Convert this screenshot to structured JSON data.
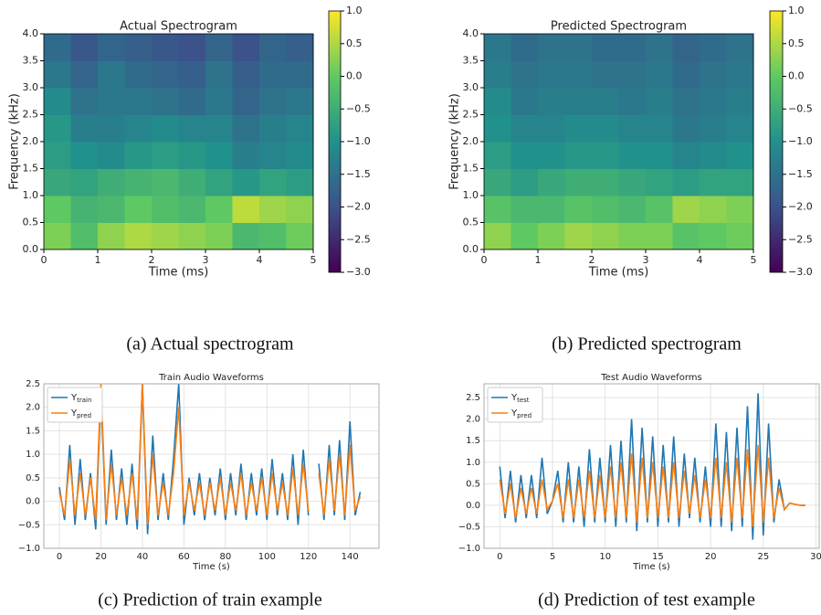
{
  "chart_data": [
    {
      "type": "heatmap",
      "title": "Actual Spectrogram",
      "xlabel": "Time (ms)",
      "ylabel": "Frequency (kHz)",
      "caption": "(a) Actual spectrogram",
      "xlim": [
        0,
        5
      ],
      "xticks": [
        0,
        1,
        2,
        3,
        4,
        5
      ],
      "ylim": [
        0,
        4
      ],
      "yticks": [
        {
          "value": 0,
          "label": "0.0"
        },
        {
          "value": 0.5,
          "label": "0.5"
        },
        {
          "value": 1,
          "label": "1.0"
        },
        {
          "value": 1.5,
          "label": "1.5"
        },
        {
          "value": 2,
          "label": "2.0"
        },
        {
          "value": 2.5,
          "label": "2.5"
        },
        {
          "value": 3,
          "label": "3.0"
        },
        {
          "value": 3.5,
          "label": "3.5"
        },
        {
          "value": 4,
          "label": "4.0"
        }
      ],
      "xbins": [
        0,
        0.5,
        1,
        1.5,
        2,
        2.5,
        3,
        3.5,
        4,
        4.5,
        5
      ],
      "ybins": [
        0,
        0.5,
        1,
        1.5,
        2,
        2.5,
        3,
        3.5,
        4
      ],
      "z": [
        [
          0.2,
          -0.2,
          0.3,
          0.5,
          0.4,
          0.3,
          0.2,
          -0.3,
          -0.2,
          0.1
        ],
        [
          0.0,
          -0.4,
          -0.3,
          0.0,
          -0.2,
          -0.3,
          0.0,
          0.6,
          0.4,
          0.3
        ],
        [
          -0.6,
          -0.7,
          -0.5,
          -0.4,
          -0.3,
          -0.5,
          -0.7,
          -0.9,
          -0.7,
          -0.8
        ],
        [
          -0.8,
          -1.0,
          -1.1,
          -0.9,
          -0.8,
          -0.9,
          -1.0,
          -1.3,
          -1.2,
          -1.1
        ],
        [
          -0.9,
          -1.3,
          -1.3,
          -1.2,
          -1.1,
          -1.2,
          -1.2,
          -1.5,
          -1.3,
          -1.2
        ],
        [
          -1.1,
          -1.5,
          -1.4,
          -1.4,
          -1.5,
          -1.6,
          -1.4,
          -1.7,
          -1.5,
          -1.4
        ],
        [
          -1.4,
          -1.7,
          -1.4,
          -1.6,
          -1.7,
          -1.8,
          -1.5,
          -1.8,
          -1.6,
          -1.6
        ],
        [
          -1.6,
          -1.9,
          -1.7,
          -1.8,
          -1.9,
          -2.0,
          -1.7,
          -2.0,
          -1.7,
          -1.8
        ]
      ],
      "colorbar": {
        "lim": [
          -3,
          1
        ],
        "ticks": [
          {
            "value": 1,
            "label": "1.0"
          },
          {
            "value": 0.5,
            "label": "0.5"
          },
          {
            "value": 0,
            "label": "0.0"
          },
          {
            "value": -0.5,
            "label": "−0.5"
          },
          {
            "value": -1,
            "label": "−1.0"
          },
          {
            "value": -1.5,
            "label": "−1.5"
          },
          {
            "value": -2,
            "label": "−2.0"
          },
          {
            "value": -2.5,
            "label": "−2.5"
          },
          {
            "value": -3,
            "label": "−3.0"
          }
        ]
      }
    },
    {
      "type": "heatmap",
      "title": "Predicted Spectrogram",
      "xlabel": "Time (ms)",
      "ylabel": "Frequency (kHz)",
      "caption": "(b) Predicted spectrogram",
      "xlim": [
        0,
        5
      ],
      "xticks": [
        0,
        1,
        2,
        3,
        4,
        5
      ],
      "ylim": [
        0,
        4
      ],
      "yticks": [
        {
          "value": 0,
          "label": "0.0"
        },
        {
          "value": 0.5,
          "label": "0.5"
        },
        {
          "value": 1,
          "label": "1.0"
        },
        {
          "value": 1.5,
          "label": "1.5"
        },
        {
          "value": 2,
          "label": "2.0"
        },
        {
          "value": 2.5,
          "label": "2.5"
        },
        {
          "value": 3,
          "label": "3.0"
        },
        {
          "value": 3.5,
          "label": "3.5"
        },
        {
          "value": 4,
          "label": "4.0"
        }
      ],
      "xbins": [
        0,
        0.5,
        1,
        1.5,
        2,
        2.5,
        3,
        3.5,
        4,
        4.5,
        5
      ],
      "ybins": [
        0,
        0.5,
        1,
        1.5,
        2,
        2.5,
        3,
        3.5,
        4
      ],
      "z": [
        [
          0.3,
          0.0,
          0.2,
          0.4,
          0.3,
          0.2,
          0.2,
          -0.1,
          0.0,
          0.1
        ],
        [
          -0.1,
          -0.3,
          -0.3,
          -0.1,
          -0.2,
          -0.3,
          -0.1,
          0.4,
          0.3,
          0.2
        ],
        [
          -0.6,
          -0.8,
          -0.6,
          -0.5,
          -0.5,
          -0.6,
          -0.7,
          -0.8,
          -0.7,
          -0.7
        ],
        [
          -0.8,
          -1.0,
          -1.0,
          -0.9,
          -0.9,
          -1.0,
          -1.0,
          -1.2,
          -1.1,
          -1.0
        ],
        [
          -1.0,
          -1.2,
          -1.2,
          -1.1,
          -1.1,
          -1.2,
          -1.2,
          -1.4,
          -1.3,
          -1.2
        ],
        [
          -1.1,
          -1.4,
          -1.3,
          -1.3,
          -1.3,
          -1.4,
          -1.3,
          -1.5,
          -1.4,
          -1.3
        ],
        [
          -1.3,
          -1.5,
          -1.4,
          -1.4,
          -1.5,
          -1.5,
          -1.4,
          -1.6,
          -1.5,
          -1.4
        ],
        [
          -1.4,
          -1.6,
          -1.5,
          -1.5,
          -1.6,
          -1.6,
          -1.5,
          -1.7,
          -1.6,
          -1.5
        ]
      ],
      "colorbar": {
        "lim": [
          -3,
          1
        ],
        "ticks": [
          {
            "value": 1,
            "label": "1.0"
          },
          {
            "value": 0.5,
            "label": "0.5"
          },
          {
            "value": 0,
            "label": "0.0"
          },
          {
            "value": -0.5,
            "label": "−0.5"
          },
          {
            "value": -1,
            "label": "−1.0"
          },
          {
            "value": -1.5,
            "label": "−1.5"
          },
          {
            "value": -2,
            "label": "−2.0"
          },
          {
            "value": -2.5,
            "label": "−2.5"
          },
          {
            "value": -3,
            "label": "−3.0"
          }
        ]
      }
    },
    {
      "type": "line",
      "title": "Train Audio Waveforms",
      "xlabel": "Time (s)",
      "caption": "(c) Prediction of train example",
      "grid": true,
      "legend": "upper left",
      "xlim": [
        -7.5,
        154
      ],
      "xticks": [
        0,
        20,
        40,
        60,
        80,
        100,
        120,
        140
      ],
      "ylim": [
        -1,
        2.5
      ],
      "yticks": [
        {
          "value": -1,
          "label": "−1.0"
        },
        {
          "value": -0.5,
          "label": "−0.5"
        },
        {
          "value": 0,
          "label": "0.0"
        },
        {
          "value": 0.5,
          "label": "0.5"
        },
        {
          "value": 1,
          "label": "1.0"
        },
        {
          "value": 1.5,
          "label": "1.5"
        },
        {
          "value": 2,
          "label": "2.0"
        },
        {
          "value": 2.5,
          "label": "2.5"
        }
      ],
      "x": [
        0,
        2.5,
        5,
        7.5,
        10,
        12.5,
        15,
        17.5,
        20,
        22.5,
        25,
        27.5,
        30,
        32.5,
        35,
        37.5,
        40,
        42.5,
        45,
        47.5,
        50,
        52.5,
        55,
        57.5,
        60,
        62.5,
        65,
        67.5,
        70,
        72.5,
        75,
        77.5,
        80,
        82.5,
        85,
        87.5,
        90,
        92.5,
        95,
        97.5,
        100,
        102.5,
        105,
        107.5,
        110,
        112.5,
        115,
        117.5,
        120,
        122.5,
        125,
        127.5,
        130,
        132.5,
        135,
        137.5,
        140,
        142.5,
        145
      ],
      "series": [
        {
          "name": "Ytrain",
          "color": "#1f77b4",
          "values": [
            0.3,
            -0.4,
            1.2,
            -0.5,
            0.9,
            -0.4,
            0.6,
            -0.6,
            2.3,
            -0.5,
            1.1,
            -0.4,
            0.7,
            -0.5,
            0.8,
            -0.6,
            2.5,
            -0.7,
            1.4,
            -0.4,
            0.6,
            -0.4,
            0.9,
            2.5,
            -0.5,
            0.5,
            -0.3,
            0.6,
            -0.4,
            0.5,
            -0.3,
            0.7,
            -0.4,
            0.6,
            -0.3,
            0.8,
            -0.4,
            0.6,
            -0.3,
            0.7,
            -0.4,
            0.9,
            -0.3,
            0.6,
            -0.4,
            1.0,
            -0.5,
            1.1,
            -0.3,
            null,
            0.8,
            -0.4,
            1.2,
            -0.3,
            1.3,
            -0.4,
            1.7,
            -0.3,
            0.2
          ]
        },
        {
          "name": "Ypred",
          "color": "#ff7f0e",
          "values": [
            0.2,
            -0.3,
            0.9,
            -0.3,
            0.6,
            -0.3,
            0.5,
            -0.4,
            2.5,
            -0.4,
            0.8,
            -0.3,
            0.5,
            -0.3,
            0.6,
            -0.4,
            2.5,
            -0.5,
            1.0,
            -0.3,
            0.4,
            -0.3,
            0.6,
            2.0,
            -0.3,
            0.4,
            -0.2,
            0.4,
            -0.3,
            0.4,
            -0.2,
            0.5,
            -0.3,
            0.4,
            -0.2,
            0.6,
            -0.3,
            0.4,
            -0.2,
            0.5,
            -0.3,
            0.6,
            -0.2,
            0.4,
            -0.3,
            0.7,
            -0.3,
            0.8,
            -0.2,
            null,
            0.6,
            -0.3,
            0.9,
            -0.2,
            1.0,
            -0.3,
            1.2,
            -0.2,
            0.1
          ]
        }
      ]
    },
    {
      "type": "line",
      "title": "Test Audio Waveforms",
      "xlabel": "Time (s)",
      "caption": "(d) Prediction of test example",
      "grid": true,
      "legend": "upper left",
      "xlim": [
        -1.5,
        30.3
      ],
      "xticks": [
        0,
        5,
        10,
        15,
        20,
        25,
        30
      ],
      "ylim": [
        -1,
        2.82
      ],
      "yticks": [
        {
          "value": -1,
          "label": "−1.0"
        },
        {
          "value": -0.5,
          "label": "−0.5"
        },
        {
          "value": 0,
          "label": "0.0"
        },
        {
          "value": 0.5,
          "label": "0.5"
        },
        {
          "value": 1,
          "label": "1.0"
        },
        {
          "value": 1.5,
          "label": "1.5"
        },
        {
          "value": 2,
          "label": "2.0"
        },
        {
          "value": 2.5,
          "label": "2.5"
        }
      ],
      "x": [
        0,
        0.5,
        1,
        1.5,
        2,
        2.5,
        3,
        3.5,
        4,
        4.5,
        5,
        5.5,
        6,
        6.5,
        7,
        7.5,
        8,
        8.5,
        9,
        9.5,
        10,
        10.5,
        11,
        11.5,
        12,
        12.5,
        13,
        13.5,
        14,
        14.5,
        15,
        15.5,
        16,
        16.5,
        17,
        17.5,
        18,
        18.5,
        19,
        19.5,
        20,
        20.5,
        21,
        21.5,
        22,
        22.5,
        23,
        23.5,
        24,
        24.5,
        25,
        25.5,
        26,
        26.5,
        27,
        27.5,
        28,
        28.5,
        29
      ],
      "series": [
        {
          "name": "Ytest",
          "color": "#1f77b4",
          "values": [
            0.9,
            -0.3,
            0.8,
            -0.4,
            0.7,
            -0.3,
            0.7,
            -0.3,
            1.1,
            -0.2,
            0.1,
            0.8,
            -0.4,
            1.0,
            -0.4,
            0.9,
            -0.5,
            1.3,
            -0.4,
            1.1,
            -0.4,
            1.4,
            -0.5,
            1.5,
            -0.4,
            2.0,
            -0.6,
            1.8,
            -0.4,
            1.6,
            -0.5,
            1.4,
            -0.4,
            1.6,
            -0.5,
            1.2,
            -0.3,
            1.1,
            -0.4,
            0.9,
            -0.5,
            1.9,
            -0.5,
            1.7,
            -0.6,
            1.8,
            -0.5,
            2.3,
            -0.8,
            2.6,
            -0.7,
            1.9,
            -0.4,
            0.6,
            -0.1,
            0.05,
            0.02,
            0.0,
            0.0
          ]
        },
        {
          "name": "Ypred",
          "color": "#ff7f0e",
          "values": [
            0.6,
            -0.2,
            0.5,
            -0.3,
            0.4,
            -0.2,
            0.4,
            -0.2,
            0.6,
            -0.1,
            0.1,
            0.5,
            -0.3,
            0.6,
            -0.3,
            0.6,
            -0.3,
            0.8,
            -0.3,
            0.7,
            -0.3,
            0.9,
            -0.3,
            1.0,
            -0.3,
            1.2,
            -0.4,
            1.1,
            -0.3,
            1.0,
            -0.3,
            0.9,
            -0.3,
            1.0,
            -0.3,
            0.8,
            -0.2,
            0.7,
            -0.3,
            0.6,
            -0.3,
            1.1,
            -0.3,
            1.0,
            -0.4,
            1.1,
            -0.3,
            1.3,
            -0.5,
            1.4,
            -0.4,
            1.1,
            -0.3,
            0.4,
            -0.1,
            0.05,
            0.02,
            0.0,
            0.0
          ]
        }
      ]
    }
  ]
}
